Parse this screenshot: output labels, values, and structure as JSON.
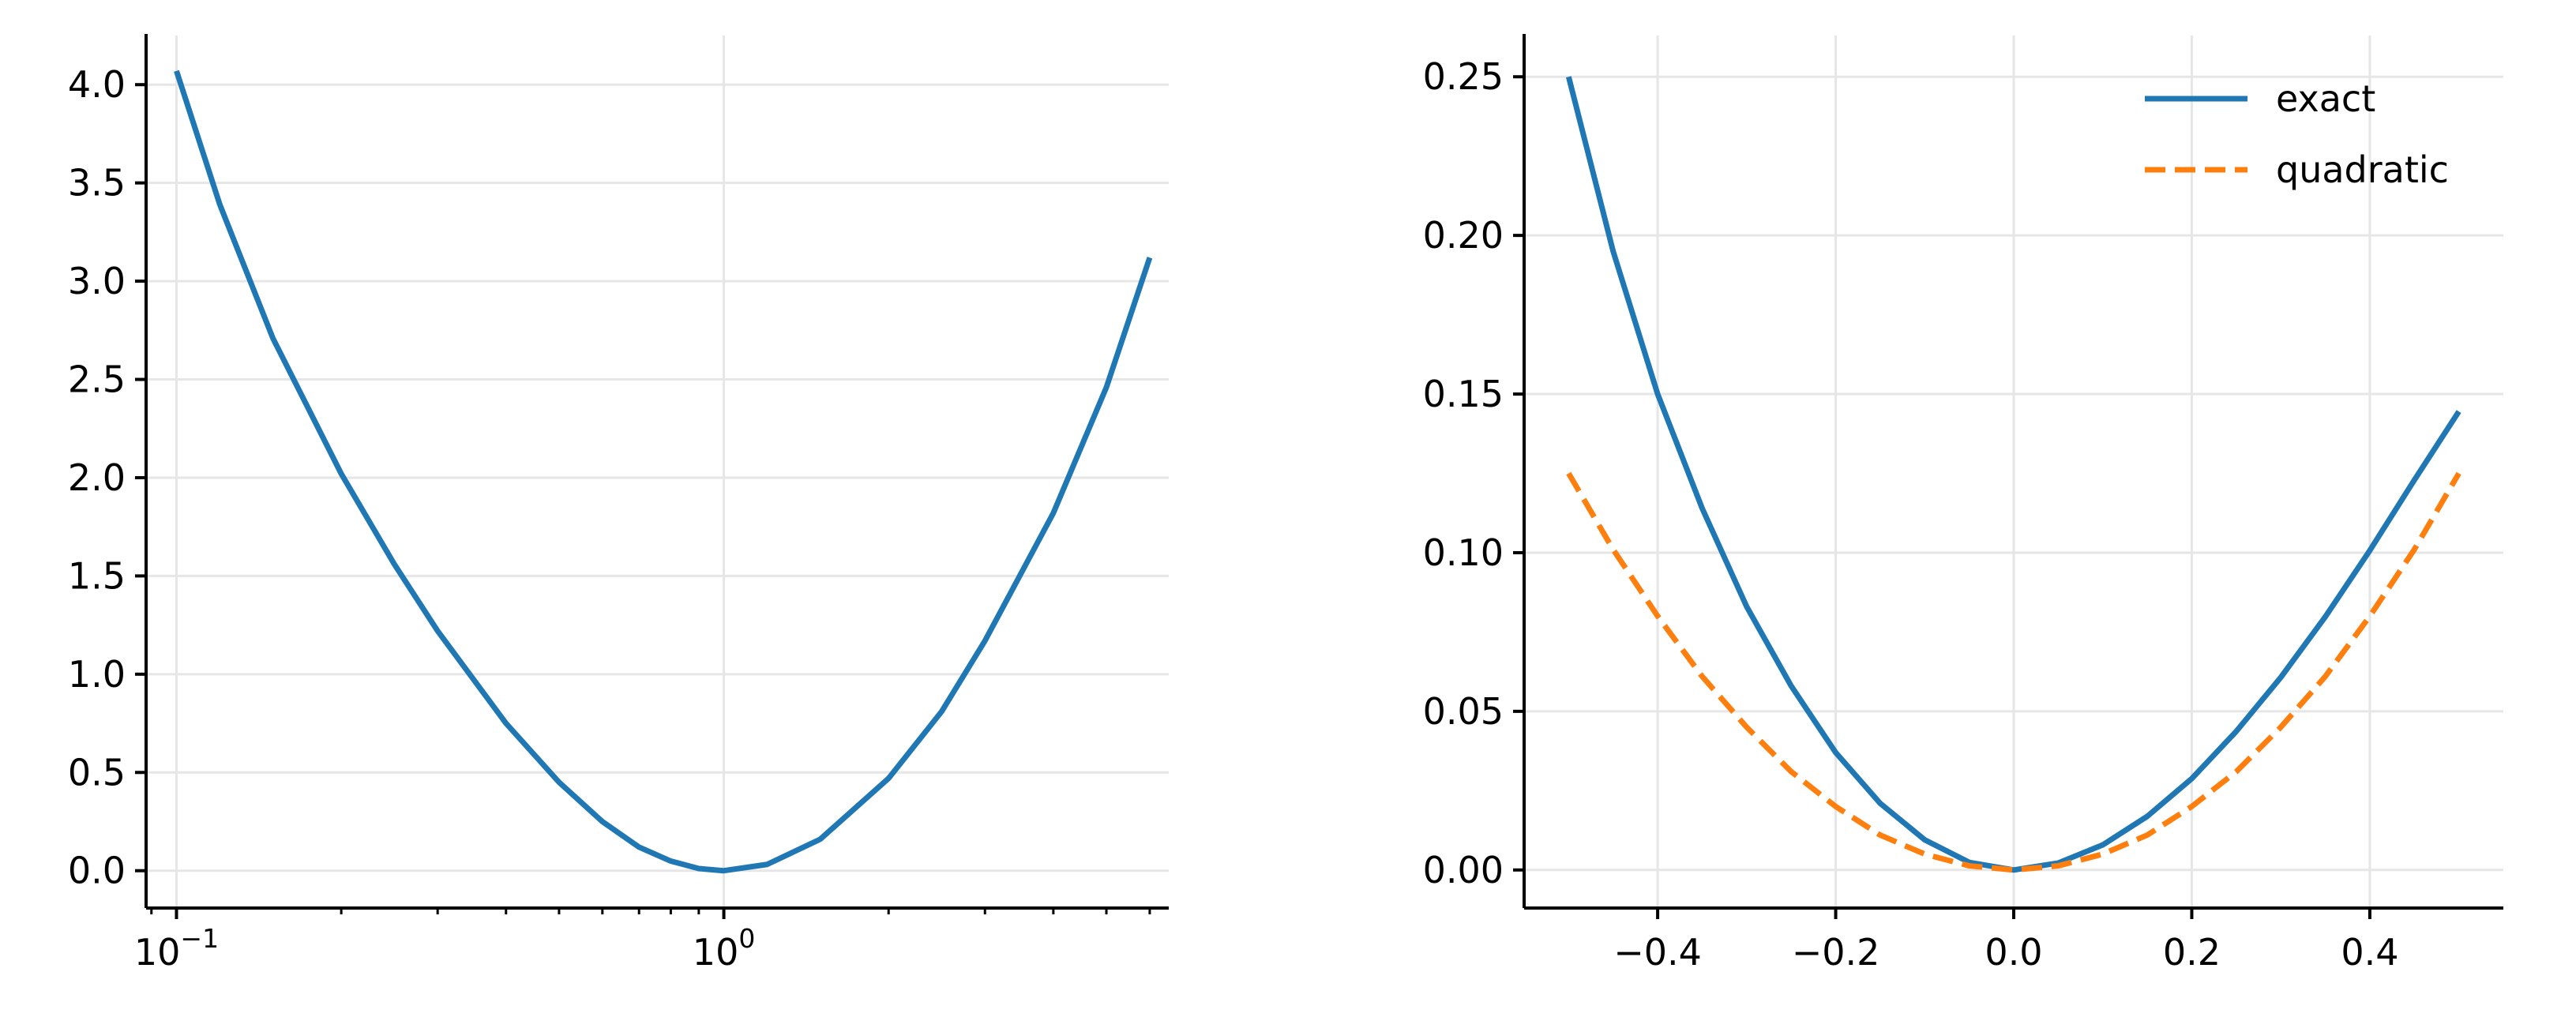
{
  "chart_data": [
    {
      "type": "line",
      "title": "",
      "xlabel": "",
      "ylabel": "",
      "xscale": "log",
      "xlim": [
        0.088,
        6.5
      ],
      "ylim": [
        -0.19,
        4.25
      ],
      "grid": true,
      "legend": null,
      "x_ticks": [
        0.1,
        1
      ],
      "x_tick_labels": [
        {
          "base": "10",
          "exp": "−1"
        },
        {
          "base": "10",
          "exp": "0"
        }
      ],
      "y_ticks": [
        0.0,
        0.5,
        1.0,
        1.5,
        2.0,
        2.5,
        3.0,
        3.5,
        4.0
      ],
      "y_tick_labels": [
        "0.0",
        "0.5",
        "1.0",
        "1.5",
        "2.0",
        "2.5",
        "3.0",
        "3.5",
        "4.0"
      ],
      "series": [
        {
          "color": "#1f77b4",
          "style": "solid",
          "x": [
            0.1,
            0.12,
            0.15,
            0.2,
            0.25,
            0.3,
            0.4,
            0.5,
            0.6,
            0.7,
            0.8,
            0.9,
            1.0,
            1.2,
            1.5,
            2.0,
            2.5,
            3.0,
            4.0,
            5.0,
            6.0
          ],
          "y": [
            4.07,
            3.39,
            2.71,
            2.02,
            1.56,
            1.22,
            0.75,
            0.45,
            0.25,
            0.12,
            0.049,
            0.011,
            0.0,
            0.032,
            0.16,
            0.47,
            0.81,
            1.17,
            1.82,
            2.46,
            3.12
          ]
        }
      ]
    },
    {
      "type": "line",
      "title": "",
      "xlabel": "",
      "ylabel": "",
      "xscale": "linear",
      "xlim": [
        -0.55,
        0.55
      ],
      "ylim": [
        -0.012,
        0.263
      ],
      "grid": true,
      "legend": "top-right",
      "x_ticks": [
        -0.4,
        -0.2,
        0.0,
        0.2,
        0.4
      ],
      "x_tick_labels": [
        "−0.4",
        "−0.2",
        "0.0",
        "0.2",
        "0.4"
      ],
      "y_ticks": [
        0.0,
        0.05,
        0.1,
        0.15,
        0.2,
        0.25
      ],
      "y_tick_labels": [
        "0.00",
        "0.05",
        "0.10",
        "0.15",
        "0.20",
        "0.25"
      ],
      "series": [
        {
          "name": "exact",
          "color": "#1f77b4",
          "style": "solid",
          "x": [
            -0.5,
            -0.45,
            -0.4,
            -0.35,
            -0.3,
            -0.25,
            -0.2,
            -0.15,
            -0.1,
            -0.05,
            0.0,
            0.05,
            0.1,
            0.15,
            0.2,
            0.25,
            0.3,
            0.35,
            0.4,
            0.45,
            0.5
          ],
          "y": [
            0.25,
            0.195,
            0.15,
            0.114,
            0.083,
            0.058,
            0.037,
            0.021,
            0.0095,
            0.0024,
            0.0,
            0.0022,
            0.0079,
            0.0169,
            0.0288,
            0.0437,
            0.0607,
            0.0798,
            0.1007,
            0.1229,
            0.1445
          ]
        },
        {
          "name": "quadratic",
          "color": "#ff7f0e",
          "style": "dashed",
          "x": [
            -0.5,
            -0.45,
            -0.4,
            -0.35,
            -0.3,
            -0.25,
            -0.2,
            -0.15,
            -0.1,
            -0.05,
            0.0,
            0.05,
            0.1,
            0.15,
            0.2,
            0.25,
            0.3,
            0.35,
            0.4,
            0.45,
            0.5
          ],
          "y": [
            0.125,
            0.101,
            0.08,
            0.061,
            0.045,
            0.031,
            0.02,
            0.011,
            0.005,
            0.0013,
            0.0,
            0.0013,
            0.005,
            0.011,
            0.02,
            0.031,
            0.045,
            0.061,
            0.08,
            0.101,
            0.125
          ]
        }
      ]
    }
  ]
}
